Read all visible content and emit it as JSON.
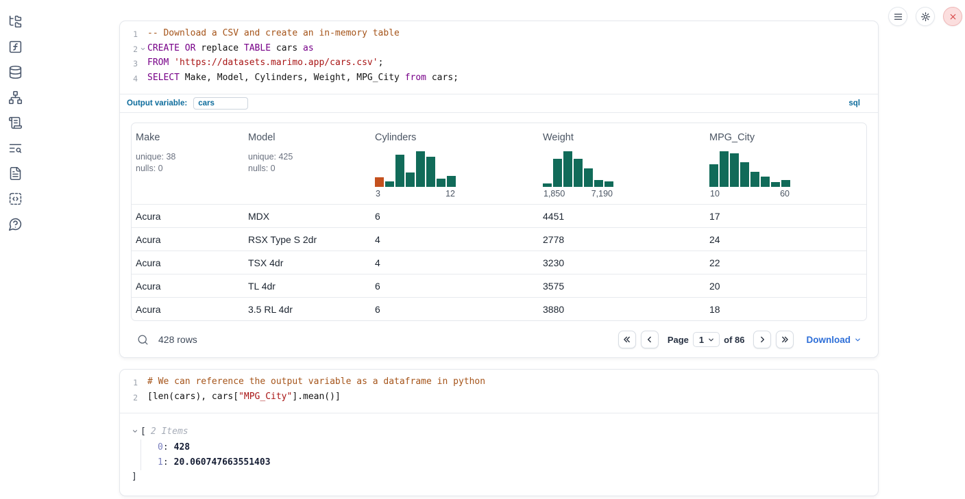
{
  "colors": {
    "histogram_green": "#116b59",
    "histogram_orange": "#c4511e",
    "accent_blue": "#0d6c9c",
    "link_blue": "#2e6fd8",
    "close_red": "#d64545"
  },
  "sidebar": {
    "items": [
      {
        "id": "file-explorer",
        "icon": "folder-tree-icon"
      },
      {
        "id": "variables",
        "icon": "function-square-icon"
      },
      {
        "id": "data-sources",
        "icon": "database-icon"
      },
      {
        "id": "dependency-graph",
        "icon": "network-icon"
      },
      {
        "id": "logs",
        "icon": "scroll-text-icon"
      },
      {
        "id": "search",
        "icon": "list-search-icon"
      },
      {
        "id": "documentation",
        "icon": "file-text-icon"
      },
      {
        "id": "snippets",
        "icon": "code-snippet-icon"
      },
      {
        "id": "help",
        "icon": "help-chat-icon"
      }
    ]
  },
  "topbar": {
    "buttons": [
      {
        "id": "menu",
        "icon": "hamburger-icon",
        "style": "default"
      },
      {
        "id": "settings",
        "icon": "gear-icon",
        "style": "default"
      },
      {
        "id": "shutdown",
        "icon": "close-icon",
        "style": "danger"
      }
    ]
  },
  "sql_cell": {
    "lines": [
      {
        "num": "1",
        "tokens": [
          {
            "t": "-- Download a CSV and create an in-memory table",
            "c": "cmt"
          }
        ]
      },
      {
        "num": "2",
        "fold": true,
        "tokens": [
          {
            "t": "CREATE OR",
            "c": "kw"
          },
          {
            "t": " replace ",
            "c": "pl"
          },
          {
            "t": "TABLE",
            "c": "kw"
          },
          {
            "t": " cars ",
            "c": "pl"
          },
          {
            "t": "as",
            "c": "kw"
          }
        ]
      },
      {
        "num": "3",
        "tokens": [
          {
            "t": "FROM",
            "c": "kw"
          },
          {
            "t": " ",
            "c": "pl"
          },
          {
            "t": "'https://datasets.marimo.app/cars.csv'",
            "c": "str"
          },
          {
            "t": ";",
            "c": "pl"
          }
        ]
      },
      {
        "num": "4",
        "tokens": [
          {
            "t": "SELECT",
            "c": "kw"
          },
          {
            "t": " Make, Model, Cylinders, Weight, MPG_City ",
            "c": "pl"
          },
          {
            "t": "from",
            "c": "kw"
          },
          {
            "t": " cars;",
            "c": "pl"
          }
        ]
      }
    ],
    "output_variable_label": "Output variable:",
    "output_variable_value": "cars",
    "language_badge": "sql"
  },
  "table": {
    "columns": [
      {
        "name": "Make",
        "stats": [
          "unique: 38",
          "nulls: 0"
        ]
      },
      {
        "name": "Model",
        "stats": [
          "unique: 425",
          "nulls: 0"
        ]
      },
      {
        "name": "Cylinders",
        "histogram": {
          "min_label": "3",
          "max_label": "12",
          "values": [
            0.26,
            0.16,
            0.9,
            0.4,
            1.0,
            0.84,
            0.24,
            0.3
          ],
          "highlight_first": true
        }
      },
      {
        "name": "Weight",
        "histogram": {
          "min_label": "1,850",
          "max_label": "7,190",
          "values": [
            0.1,
            0.79,
            1.0,
            0.79,
            0.52,
            0.19,
            0.15
          ]
        }
      },
      {
        "name": "MPG_City",
        "histogram": {
          "min_label": "10",
          "max_label": "60",
          "values": [
            0.63,
            1.0,
            0.94,
            0.69,
            0.42,
            0.29,
            0.13,
            0.19
          ]
        }
      }
    ],
    "rows": [
      [
        "Acura",
        "MDX",
        "6",
        "4451",
        "17"
      ],
      [
        "Acura",
        "RSX Type S 2dr",
        "4",
        "2778",
        "24"
      ],
      [
        "Acura",
        "TSX 4dr",
        "4",
        "3230",
        "22"
      ],
      [
        "Acura",
        "TL 4dr",
        "6",
        "3575",
        "20"
      ],
      [
        "Acura",
        "3.5 RL 4dr",
        "6",
        "3880",
        "18"
      ]
    ],
    "footer": {
      "row_count": "428 rows",
      "page_label": "Page",
      "page_value": "1",
      "of_label": "of 86",
      "download_label": "Download"
    }
  },
  "python_cell": {
    "lines": [
      {
        "num": "1",
        "tokens": [
          {
            "t": "# We can reference the output variable as a dataframe in python",
            "c": "cmt"
          }
        ]
      },
      {
        "num": "2",
        "tokens": [
          {
            "t": "[len(cars), cars[",
            "c": "pl"
          },
          {
            "t": "\"MPG_City\"",
            "c": "str"
          },
          {
            "t": "].mean()]",
            "c": "pl"
          }
        ]
      }
    ]
  },
  "output_tree": {
    "open_bracket": "[",
    "items_label": "2 Items",
    "entries": [
      {
        "key": "0",
        "value": "428"
      },
      {
        "key": "1",
        "value": "20.060747663551403"
      }
    ],
    "close_bracket": "]"
  }
}
